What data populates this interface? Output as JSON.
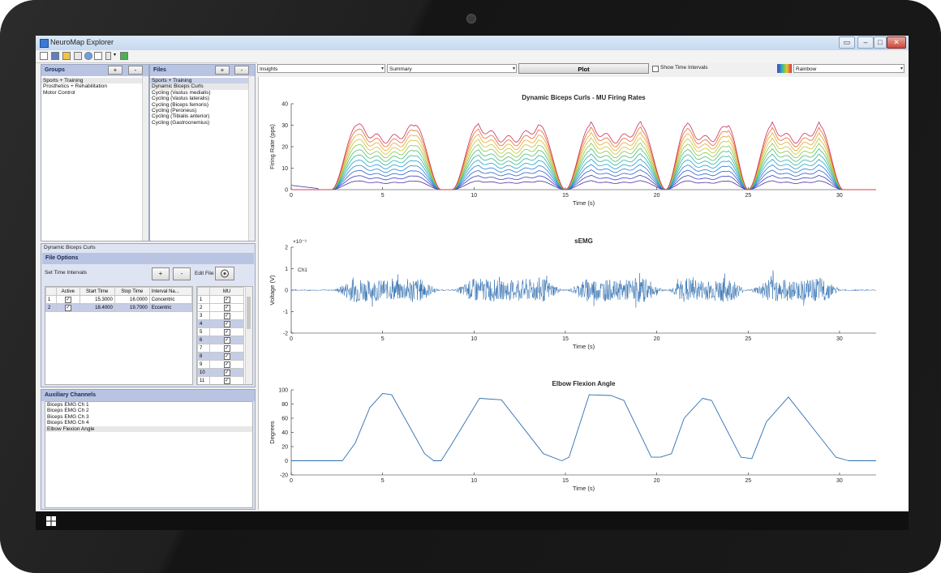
{
  "window": {
    "title": "NeuroMap Explorer"
  },
  "groups": {
    "title": "Groups",
    "add": "+",
    "remove": "-",
    "items": [
      "Sports + Training",
      "Prosthetics + Rehabilitation",
      "Motor Control"
    ]
  },
  "files": {
    "title": "Files",
    "add": "+",
    "remove": "-",
    "header": "Sports + Training",
    "items": [
      "Dynamic Biceps Curls",
      "Cycling (Vastus medialis)",
      "Cycling (Vastus lateralis)",
      "Cycling (Biceps femoris)",
      "Cycling (Peroneus)",
      "Cycling (Tibialis anterior)",
      "Cycling (Gastrocnemius)"
    ]
  },
  "file_options": {
    "file_name": "Dynamic Biceps Curls",
    "title": "File Options",
    "set_time_intervals": "Set Time Intervals",
    "add": "+",
    "remove": "-",
    "edit_file": "Edit File",
    "interval_columns": [
      "Active",
      "Start Time",
      "Stop Time",
      "Interval Na..."
    ],
    "intervals": [
      {
        "n": "1",
        "start": "15.3000",
        "stop": "16.0000",
        "name": "Concentric"
      },
      {
        "n": "2",
        "start": "18.4000",
        "stop": "19.7000",
        "name": "Eccentric"
      }
    ],
    "mu_column": "MU",
    "mu_rows": [
      "1",
      "2",
      "3",
      "4",
      "5",
      "6",
      "7",
      "8",
      "9",
      "10",
      "11"
    ]
  },
  "aux": {
    "title": "Auxiliary Channels",
    "items": [
      "Biceps EMG Ch 1",
      "Biceps EMG Ch 2",
      "Biceps EMG Ch 3",
      "Biceps EMG Ch 4",
      "Elbow Flexion Angle"
    ]
  },
  "controls": {
    "insights": "Insights",
    "summary": "Summary",
    "plot": "Plot",
    "show_intervals": "Show Time Intervals",
    "colormap": "Rainbow"
  },
  "chart_data": [
    {
      "type": "line",
      "title": "Dynamic Biceps Curls - MU Firing Rates",
      "xlabel": "Time (s)",
      "ylabel": "Firing Rate (pps)",
      "xlim": [
        0,
        32
      ],
      "ylim": [
        0,
        40
      ],
      "xticks": [
        "0",
        "5",
        "10",
        "15",
        "20",
        "25",
        "30"
      ],
      "yticks": [
        "0",
        "10",
        "20",
        "30",
        "40"
      ],
      "bursts": [
        [
          2.2,
          8.2
        ],
        [
          8.8,
          15.0
        ],
        [
          15.0,
          20.5
        ],
        [
          20.5,
          25.0
        ],
        [
          25.0,
          30.2
        ]
      ],
      "peak_top": 30,
      "peak_bottom": 4,
      "num_units": 12
    },
    {
      "type": "line",
      "title": "sEMG",
      "xlabel": "Time (s)",
      "ylabel": "Voltage (V)",
      "exponent": "×10⁻³",
      "series_label": "Ch1",
      "xlim": [
        0,
        32
      ],
      "ylim": [
        -2,
        2
      ],
      "xticks": [
        "0",
        "5",
        "10",
        "15",
        "20",
        "25",
        "30"
      ],
      "yticks": [
        "-2",
        "-1",
        "0",
        "1",
        "2"
      ]
    },
    {
      "type": "line",
      "title": "Elbow Flexion Angle",
      "xlabel": "Time (s)",
      "ylabel": "Degrees",
      "xlim": [
        0,
        32
      ],
      "ylim": [
        -20,
        100
      ],
      "xticks": [
        "0",
        "5",
        "10",
        "15",
        "20",
        "25",
        "30"
      ],
      "yticks": [
        "-20",
        "0",
        "20",
        "40",
        "60",
        "80",
        "100"
      ],
      "x": [
        0,
        2.8,
        3.5,
        4.3,
        5.0,
        5.5,
        7.3,
        7.8,
        8.2,
        8.7,
        10.3,
        11.5,
        13.8,
        14.8,
        15.2,
        16.3,
        17.5,
        18.2,
        19.7,
        20.2,
        20.8,
        21.5,
        22.5,
        23.0,
        24.6,
        25.2,
        26.0,
        27.2,
        29.8,
        30.5,
        32
      ],
      "y": [
        0,
        0,
        25,
        75,
        95,
        93,
        10,
        0,
        0,
        20,
        88,
        86,
        10,
        0,
        5,
        93,
        92,
        85,
        5,
        5,
        10,
        60,
        88,
        85,
        5,
        3,
        55,
        90,
        5,
        0,
        0
      ]
    }
  ]
}
